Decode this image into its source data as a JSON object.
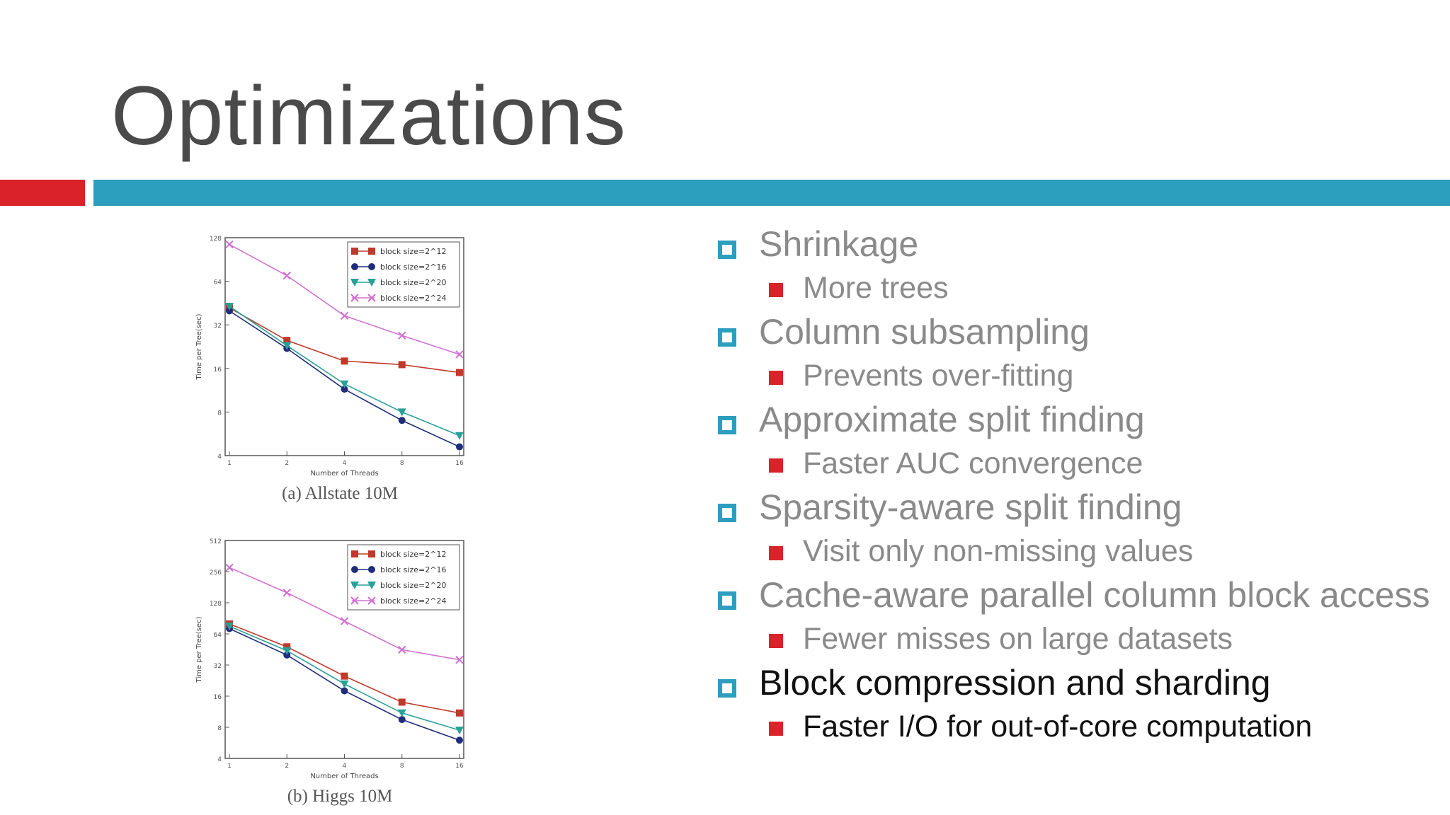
{
  "slide": {
    "title": "Optimizations"
  },
  "bullets": [
    {
      "text": "Shrinkage",
      "sub": "More trees",
      "dark": false
    },
    {
      "text": "Column subsampling",
      "sub": "Prevents over-fitting",
      "dark": false
    },
    {
      "text": "Approximate split finding",
      "sub": "Faster AUC convergence",
      "dark": false
    },
    {
      "text": "Sparsity-aware split finding",
      "sub": "Visit only non-missing values",
      "dark": false
    },
    {
      "text": "Cache-aware parallel column block access",
      "sub": "Fewer misses on large datasets",
      "dark": false
    },
    {
      "text": "Block compression and sharding",
      "sub": "Faster I/O for out-of-core computation",
      "dark": true
    }
  ],
  "colors": {
    "accent_red": "#d9222a",
    "accent_blue": "#2c9fbe"
  },
  "chart_data": [
    {
      "type": "line",
      "title": "(a) Allstate 10M",
      "xlabel": "Number of Threads",
      "ylabel": "Time per Tree(sec)",
      "x": [
        1,
        2,
        4,
        8,
        16
      ],
      "xscale": "log2",
      "yscale": "log2",
      "ylim": [
        4,
        128
      ],
      "yticks": [
        4,
        8,
        16,
        32,
        64,
        128
      ],
      "legend_position": "top-right",
      "series": [
        {
          "name": "block size=2^12",
          "color": "#c0392b",
          "marker": "square",
          "values": [
            42,
            25,
            18,
            17,
            15
          ]
        },
        {
          "name": "block size=2^16",
          "color": "#1f2d7a",
          "marker": "circle",
          "values": [
            40,
            22,
            11.5,
            7,
            4.6
          ]
        },
        {
          "name": "block size=2^20",
          "color": "#2aa198",
          "marker": "triangle",
          "values": [
            43,
            23,
            12.5,
            8,
            5.5
          ]
        },
        {
          "name": "block size=2^24",
          "color": "#d070d0",
          "marker": "x",
          "values": [
            115,
            70,
            37,
            27,
            20
          ]
        }
      ]
    },
    {
      "type": "line",
      "title": "(b) Higgs 10M",
      "xlabel": "Number of Threads",
      "ylabel": "Time per Tree(sec)",
      "x": [
        1,
        2,
        4,
        8,
        16
      ],
      "xscale": "log2",
      "yscale": "log2",
      "ylim": [
        4,
        512
      ],
      "yticks": [
        4,
        8,
        16,
        32,
        64,
        128,
        256,
        512
      ],
      "legend_position": "top-right",
      "series": [
        {
          "name": "block size=2^12",
          "color": "#c0392b",
          "marker": "square",
          "values": [
            80,
            48,
            25,
            14,
            11
          ]
        },
        {
          "name": "block size=2^16",
          "color": "#1f2d7a",
          "marker": "circle",
          "values": [
            72,
            40,
            18,
            9.5,
            6
          ]
        },
        {
          "name": "block size=2^20",
          "color": "#2aa198",
          "marker": "triangle",
          "values": [
            76,
            44,
            21,
            11,
            7.5
          ]
        },
        {
          "name": "block size=2^24",
          "color": "#d070d0",
          "marker": "x",
          "values": [
            280,
            160,
            85,
            45,
            36
          ]
        }
      ]
    }
  ]
}
